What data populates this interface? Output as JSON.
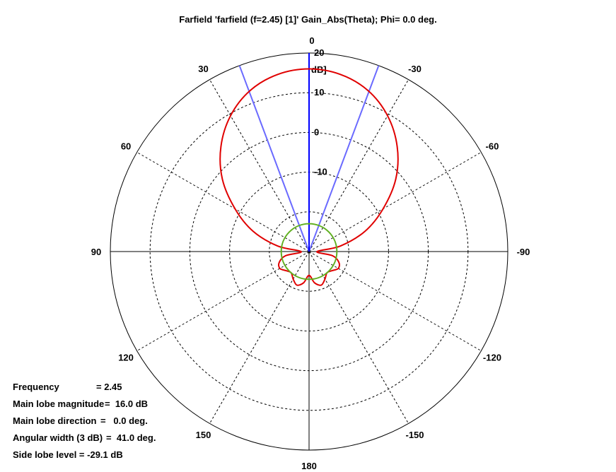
{
  "chart_data": {
    "type": "polar",
    "title": "Farfield 'farfield (f=2.45) [1]' Gain_Abs(Theta); Phi=   0.0 deg.",
    "unit_label": "dB]",
    "radial_range": [
      -30,
      20
    ],
    "radial_ticks": [
      20,
      10,
      0,
      -10
    ],
    "angle_ticks": [
      "0",
      "-30",
      "-60",
      "-90",
      "-120",
      "-150",
      "180",
      "150",
      "120",
      "90",
      "60",
      "30"
    ],
    "series": [
      {
        "color": "#e00000",
        "theta_deg": [
          0,
          10,
          20,
          30,
          40,
          50,
          60,
          70,
          80,
          90,
          100,
          110,
          120,
          130,
          140,
          150,
          160,
          170,
          180,
          190,
          200,
          210,
          220,
          230,
          240,
          250,
          260,
          270,
          280,
          290,
          300,
          310,
          320,
          330,
          340,
          350
        ],
        "gain_db": [
          16.0,
          15.3,
          13.2,
          9.5,
          4.5,
          -1.5,
          -8.5,
          -15.0,
          -22.0,
          -28.0,
          -24.0,
          -22.0,
          -21.5,
          -22.5,
          -23.0,
          -22.0,
          -21.0,
          -22.0,
          -24.0,
          -22.0,
          -21.0,
          -22.0,
          -23.0,
          -22.5,
          -21.5,
          -22.0,
          -24.0,
          -28.0,
          -22.0,
          -15.0,
          -8.5,
          -1.5,
          4.5,
          9.5,
          13.2,
          15.3
        ]
      },
      {
        "color": "#60b020",
        "theta_deg": [
          0,
          90,
          180,
          270
        ],
        "gain_db": [
          -23.0,
          -23.0,
          -23.0,
          -23.0
        ]
      }
    ],
    "markers": {
      "main_lobe_deg": 0.0,
      "beam_edges_deg": [
        20.5,
        -20.5
      ],
      "main_color": "#0000ff",
      "edge_color": "#6a6aff"
    },
    "grid": "dashed",
    "info": {
      "frequency_label": "Frequency",
      "frequency_value": "= 2.45",
      "magnitude_label": "Main lobe magnitude",
      "magnitude_value": "=  16.0 dB",
      "direction_label": "Main lobe direction",
      "direction_value": "=   0.0 deg.",
      "width_label": "Angular width (3 dB)",
      "width_value": "=  41.0 deg.",
      "sidelobe_text": "Side lobe level = -29.1 dB"
    }
  }
}
